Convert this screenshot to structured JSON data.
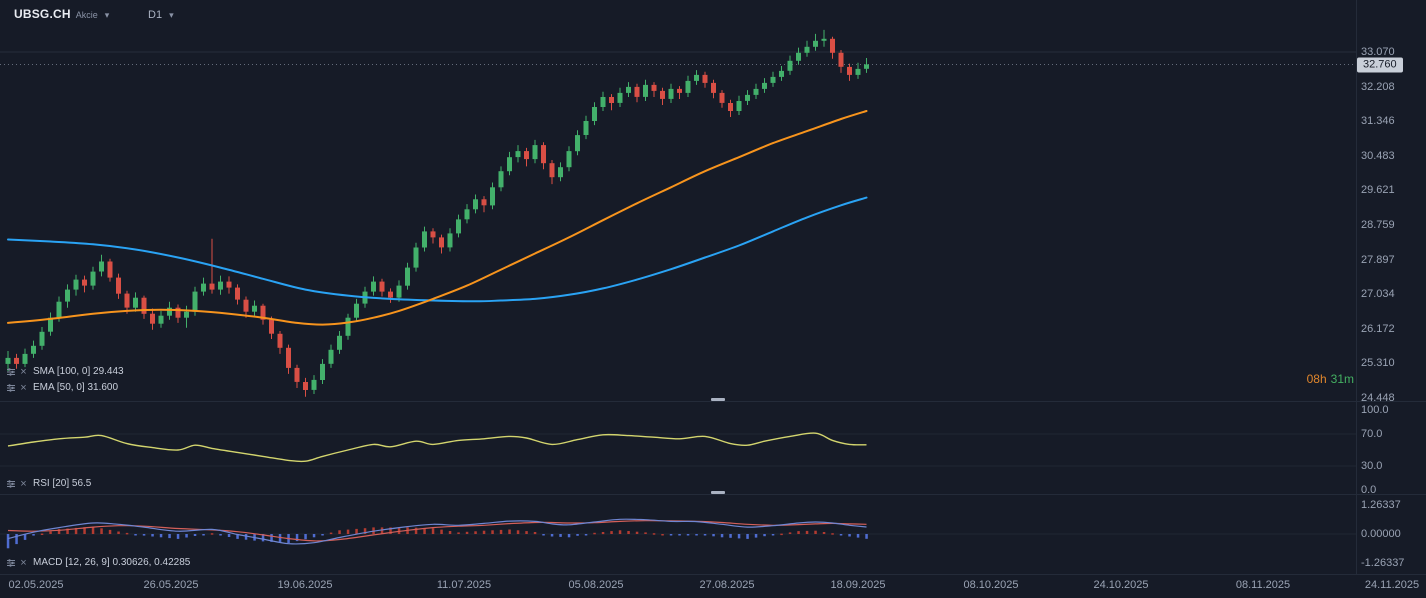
{
  "header": {
    "symbol": "UBSG.CH",
    "market_label": "Akcie",
    "timeframe": "D1"
  },
  "panels": {
    "main": {
      "sma_label": "SMA [100, 0] 29.443",
      "ema_label": "EMA [50, 0] 31.600"
    },
    "rsi": {
      "label": "RSI [20] 56.5"
    },
    "macd": {
      "label": "MACD [12, 26, 9] 0.30626, 0.42285"
    }
  },
  "countdown": {
    "hours": "08h",
    "minutes": "31m"
  },
  "price_axis": {
    "ticks": [
      "33.070",
      "32.208",
      "31.346",
      "30.483",
      "29.621",
      "28.759",
      "27.897",
      "27.034",
      "26.172",
      "25.310",
      "24.448"
    ],
    "current": "32.760"
  },
  "rsi_axis": [
    "100.0",
    "70.0",
    "30.0",
    "0.0"
  ],
  "macd_axis": [
    "1.26337",
    "0.00000",
    "-1.26337"
  ],
  "time_axis": [
    "02.05.2025",
    "26.05.2025",
    "19.06.2025",
    "11.07.2025",
    "05.08.2025",
    "27.08.2025",
    "18.09.2025",
    "08.10.2025",
    "24.10.2025",
    "08.11.2025",
    "24.11.2025"
  ],
  "colors": {
    "up": "#43b06b",
    "down": "#d94f45",
    "ema": "#f7941d",
    "sma": "#2aa3f4",
    "rsi": "#d3d56e",
    "macd_line": "#6f86d2",
    "signal_line": "#d4605a",
    "hist_pos": "#b23b31",
    "hist_neg": "#4f6cd1",
    "current_tag_bg": "#c9cfd9"
  },
  "chart_data": {
    "type": "candlestick",
    "title": "UBSG.CH Akcie D1",
    "x_start_date": "02.05.2025",
    "x_last_candle_date": "22.09.2025",
    "x_axis_end_date": "24.11.2025",
    "price_range": [
      24.448,
      33.07
    ],
    "last_close": 32.76,
    "candles": [
      [
        25.3,
        25.62,
        25.12,
        25.45
      ],
      [
        25.45,
        25.55,
        25.18,
        25.3
      ],
      [
        25.3,
        25.68,
        25.22,
        25.55
      ],
      [
        25.55,
        25.88,
        25.45,
        25.75
      ],
      [
        25.75,
        26.22,
        25.65,
        26.1
      ],
      [
        26.1,
        26.58,
        26.0,
        26.45
      ],
      [
        26.45,
        26.98,
        26.35,
        26.85
      ],
      [
        26.85,
        27.28,
        26.7,
        27.15
      ],
      [
        27.15,
        27.52,
        27.0,
        27.4
      ],
      [
        27.4,
        27.5,
        27.08,
        27.25
      ],
      [
        27.25,
        27.72,
        27.15,
        27.6
      ],
      [
        27.6,
        28.02,
        27.48,
        27.85
      ],
      [
        27.85,
        27.92,
        27.35,
        27.45
      ],
      [
        27.45,
        27.55,
        26.92,
        27.05
      ],
      [
        27.05,
        27.12,
        26.55,
        26.7
      ],
      [
        26.7,
        27.08,
        26.6,
        26.95
      ],
      [
        26.95,
        27.0,
        26.42,
        26.55
      ],
      [
        26.55,
        26.68,
        26.15,
        26.3
      ],
      [
        26.3,
        26.62,
        26.2,
        26.5
      ],
      [
        26.5,
        26.85,
        26.4,
        26.7
      ],
      [
        26.7,
        26.78,
        26.32,
        26.45
      ],
      [
        26.45,
        26.75,
        26.2,
        26.6
      ],
      [
        26.6,
        27.22,
        26.5,
        27.1
      ],
      [
        27.1,
        27.45,
        27.0,
        27.3
      ],
      [
        27.3,
        28.42,
        27.05,
        27.15
      ],
      [
        27.15,
        27.5,
        27.02,
        27.35
      ],
      [
        27.35,
        27.48,
        27.05,
        27.2
      ],
      [
        27.2,
        27.28,
        26.78,
        26.9
      ],
      [
        26.9,
        26.98,
        26.45,
        26.6
      ],
      [
        26.6,
        26.88,
        26.5,
        26.75
      ],
      [
        26.75,
        26.8,
        26.28,
        26.4
      ],
      [
        26.4,
        26.48,
        25.92,
        26.05
      ],
      [
        26.05,
        26.12,
        25.55,
        25.7
      ],
      [
        25.7,
        25.78,
        25.05,
        25.2
      ],
      [
        25.2,
        25.28,
        24.7,
        24.85
      ],
      [
        24.85,
        24.95,
        24.48,
        24.65
      ],
      [
        24.65,
        25.02,
        24.55,
        24.9
      ],
      [
        24.9,
        25.42,
        24.8,
        25.3
      ],
      [
        25.3,
        25.78,
        25.2,
        25.65
      ],
      [
        25.65,
        26.12,
        25.55,
        26.0
      ],
      [
        26.0,
        26.55,
        25.9,
        26.45
      ],
      [
        26.45,
        26.92,
        26.35,
        26.8
      ],
      [
        26.8,
        27.22,
        26.7,
        27.1
      ],
      [
        27.1,
        27.48,
        27.0,
        27.35
      ],
      [
        27.35,
        27.42,
        26.98,
        27.1
      ],
      [
        27.1,
        27.18,
        26.82,
        26.95
      ],
      [
        26.95,
        27.38,
        26.85,
        27.25
      ],
      [
        27.25,
        27.82,
        27.15,
        27.7
      ],
      [
        27.7,
        28.32,
        27.6,
        28.2
      ],
      [
        28.2,
        28.72,
        28.1,
        28.6
      ],
      [
        28.6,
        28.68,
        28.3,
        28.45
      ],
      [
        28.45,
        28.52,
        28.05,
        28.2
      ],
      [
        28.2,
        28.68,
        28.1,
        28.55
      ],
      [
        28.55,
        29.02,
        28.45,
        28.9
      ],
      [
        28.9,
        29.28,
        28.8,
        29.15
      ],
      [
        29.15,
        29.52,
        29.05,
        29.4
      ],
      [
        29.4,
        29.48,
        29.08,
        29.25
      ],
      [
        29.25,
        29.82,
        29.15,
        29.7
      ],
      [
        29.7,
        30.22,
        29.6,
        30.1
      ],
      [
        30.1,
        30.58,
        30.0,
        30.45
      ],
      [
        30.45,
        30.75,
        30.32,
        30.6
      ],
      [
        30.6,
        30.68,
        30.22,
        30.4
      ],
      [
        30.4,
        30.88,
        30.3,
        30.75
      ],
      [
        30.75,
        30.82,
        30.15,
        30.3
      ],
      [
        30.3,
        30.38,
        29.78,
        29.95
      ],
      [
        29.95,
        30.32,
        29.85,
        30.2
      ],
      [
        30.2,
        30.72,
        30.1,
        30.6
      ],
      [
        30.6,
        31.12,
        30.5,
        31.0
      ],
      [
        31.0,
        31.48,
        30.9,
        31.35
      ],
      [
        31.35,
        31.82,
        31.25,
        31.7
      ],
      [
        31.7,
        32.08,
        31.6,
        31.95
      ],
      [
        31.95,
        32.02,
        31.62,
        31.8
      ],
      [
        31.8,
        32.18,
        31.7,
        32.05
      ],
      [
        32.05,
        32.32,
        31.95,
        32.2
      ],
      [
        32.2,
        32.28,
        31.82,
        31.95
      ],
      [
        31.95,
        32.38,
        31.85,
        32.25
      ],
      [
        32.25,
        32.32,
        31.95,
        32.1
      ],
      [
        32.1,
        32.18,
        31.75,
        31.9
      ],
      [
        31.9,
        32.28,
        31.8,
        32.15
      ],
      [
        32.15,
        32.22,
        31.9,
        32.05
      ],
      [
        32.05,
        32.48,
        31.95,
        32.35
      ],
      [
        32.35,
        32.62,
        32.25,
        32.5
      ],
      [
        32.5,
        32.58,
        32.18,
        32.3
      ],
      [
        32.3,
        32.38,
        31.92,
        32.05
      ],
      [
        32.05,
        32.12,
        31.68,
        31.8
      ],
      [
        31.8,
        31.88,
        31.45,
        31.6
      ],
      [
        31.6,
        31.98,
        31.5,
        31.85
      ],
      [
        31.85,
        32.12,
        31.75,
        32.0
      ],
      [
        32.0,
        32.28,
        31.9,
        32.15
      ],
      [
        32.15,
        32.42,
        32.05,
        32.3
      ],
      [
        32.3,
        32.58,
        32.2,
        32.45
      ],
      [
        32.45,
        32.72,
        32.35,
        32.6
      ],
      [
        32.6,
        32.98,
        32.5,
        32.85
      ],
      [
        32.85,
        33.18,
        32.75,
        33.05
      ],
      [
        33.05,
        33.35,
        32.95,
        33.2
      ],
      [
        33.2,
        33.52,
        33.1,
        33.35
      ],
      [
        33.35,
        33.62,
        33.2,
        33.4
      ],
      [
        33.4,
        33.45,
        32.9,
        33.05
      ],
      [
        33.05,
        33.12,
        32.55,
        32.7
      ],
      [
        32.7,
        32.78,
        32.35,
        32.5
      ],
      [
        32.5,
        32.8,
        32.4,
        32.65
      ],
      [
        32.65,
        32.92,
        32.55,
        32.76
      ]
    ],
    "overlays": [
      {
        "name": "SMA 100",
        "current": 29.443,
        "color": "#2aa3f4",
        "points": [
          [
            0,
            28.4
          ],
          [
            5,
            28.35
          ],
          [
            10,
            28.28
          ],
          [
            15,
            28.15
          ],
          [
            20,
            27.95
          ],
          [
            25,
            27.7
          ],
          [
            30,
            27.42
          ],
          [
            35,
            27.15
          ],
          [
            40,
            27.0
          ],
          [
            45,
            26.92
          ],
          [
            50,
            26.88
          ],
          [
            55,
            26.86
          ],
          [
            58,
            26.88
          ],
          [
            62,
            26.92
          ],
          [
            66,
            27.02
          ],
          [
            70,
            27.18
          ],
          [
            74,
            27.4
          ],
          [
            78,
            27.66
          ],
          [
            82,
            27.95
          ],
          [
            86,
            28.25
          ],
          [
            90,
            28.6
          ],
          [
            94,
            28.95
          ],
          [
            98,
            29.25
          ],
          [
            101,
            29.443
          ]
        ]
      },
      {
        "name": "EMA 50",
        "current": 31.6,
        "color": "#f7941d",
        "points": [
          [
            0,
            26.32
          ],
          [
            5,
            26.42
          ],
          [
            10,
            26.55
          ],
          [
            14,
            26.62
          ],
          [
            18,
            26.65
          ],
          [
            22,
            26.62
          ],
          [
            26,
            26.55
          ],
          [
            30,
            26.45
          ],
          [
            34,
            26.32
          ],
          [
            37,
            26.28
          ],
          [
            40,
            26.33
          ],
          [
            43,
            26.45
          ],
          [
            46,
            26.62
          ],
          [
            50,
            26.92
          ],
          [
            54,
            27.25
          ],
          [
            58,
            27.65
          ],
          [
            62,
            28.05
          ],
          [
            66,
            28.45
          ],
          [
            70,
            28.88
          ],
          [
            74,
            29.3
          ],
          [
            78,
            29.7
          ],
          [
            82,
            30.1
          ],
          [
            86,
            30.45
          ],
          [
            90,
            30.8
          ],
          [
            94,
            31.1
          ],
          [
            98,
            31.4
          ],
          [
            101,
            31.6
          ]
        ]
      }
    ],
    "rsi": {
      "period": 20,
      "current": 56.5,
      "range": [
        0,
        100
      ],
      "guides": [
        70,
        30
      ],
      "points": [
        [
          0,
          55
        ],
        [
          3,
          60
        ],
        [
          6,
          64
        ],
        [
          9,
          66
        ],
        [
          11,
          68
        ],
        [
          14,
          58
        ],
        [
          17,
          53
        ],
        [
          20,
          50
        ],
        [
          22,
          56
        ],
        [
          24,
          52
        ],
        [
          27,
          47
        ],
        [
          30,
          42
        ],
        [
          33,
          37
        ],
        [
          35,
          36
        ],
        [
          37,
          42
        ],
        [
          40,
          50
        ],
        [
          43,
          57
        ],
        [
          45,
          54
        ],
        [
          48,
          61
        ],
        [
          50,
          57
        ],
        [
          53,
          62
        ],
        [
          56,
          64
        ],
        [
          59,
          67
        ],
        [
          61,
          65
        ],
        [
          64,
          57
        ],
        [
          67,
          63
        ],
        [
          70,
          69
        ],
        [
          73,
          68
        ],
        [
          76,
          66
        ],
        [
          79,
          64
        ],
        [
          82,
          67
        ],
        [
          85,
          58
        ],
        [
          87,
          56
        ],
        [
          89,
          61
        ],
        [
          92,
          67
        ],
        [
          95,
          71
        ],
        [
          97,
          62
        ],
        [
          99,
          57
        ],
        [
          101,
          56.5
        ]
      ]
    },
    "macd": {
      "fast": 12,
      "slow": 26,
      "signal_period": 9,
      "current_macd": 0.30626,
      "current_signal": 0.42285,
      "range": [
        -1.26337,
        1.26337
      ],
      "macd_points": [
        [
          0,
          -0.2
        ],
        [
          3,
          0.08
        ],
        [
          6,
          0.28
        ],
        [
          10,
          0.48
        ],
        [
          13,
          0.42
        ],
        [
          16,
          0.3
        ],
        [
          20,
          0.12
        ],
        [
          24,
          0.2
        ],
        [
          27,
          -0.02
        ],
        [
          30,
          -0.22
        ],
        [
          33,
          -0.42
        ],
        [
          36,
          -0.38
        ],
        [
          39,
          -0.15
        ],
        [
          43,
          0.12
        ],
        [
          47,
          0.32
        ],
        [
          50,
          0.42
        ],
        [
          53,
          0.38
        ],
        [
          56,
          0.46
        ],
        [
          59,
          0.56
        ],
        [
          62,
          0.55
        ],
        [
          64,
          0.44
        ],
        [
          66,
          0.4
        ],
        [
          69,
          0.52
        ],
        [
          72,
          0.64
        ],
        [
          75,
          0.62
        ],
        [
          78,
          0.55
        ],
        [
          81,
          0.54
        ],
        [
          84,
          0.42
        ],
        [
          87,
          0.3
        ],
        [
          90,
          0.36
        ],
        [
          93,
          0.48
        ],
        [
          95,
          0.52
        ],
        [
          97,
          0.48
        ],
        [
          99,
          0.38
        ],
        [
          101,
          0.30626
        ]
      ],
      "signal_points": [
        [
          0,
          0.15
        ],
        [
          3,
          0.12
        ],
        [
          6,
          0.16
        ],
        [
          10,
          0.3
        ],
        [
          13,
          0.36
        ],
        [
          16,
          0.34
        ],
        [
          20,
          0.24
        ],
        [
          24,
          0.18
        ],
        [
          27,
          0.1
        ],
        [
          30,
          -0.04
        ],
        [
          33,
          -0.2
        ],
        [
          36,
          -0.3
        ],
        [
          39,
          -0.24
        ],
        [
          43,
          -0.04
        ],
        [
          47,
          0.16
        ],
        [
          50,
          0.28
        ],
        [
          53,
          0.34
        ],
        [
          56,
          0.38
        ],
        [
          59,
          0.45
        ],
        [
          62,
          0.5
        ],
        [
          64,
          0.5
        ],
        [
          66,
          0.48
        ],
        [
          69,
          0.49
        ],
        [
          72,
          0.55
        ],
        [
          75,
          0.58
        ],
        [
          78,
          0.57
        ],
        [
          81,
          0.55
        ],
        [
          84,
          0.5
        ],
        [
          87,
          0.42
        ],
        [
          90,
          0.38
        ],
        [
          93,
          0.41
        ],
        [
          95,
          0.44
        ],
        [
          97,
          0.46
        ],
        [
          99,
          0.44
        ],
        [
          101,
          0.42285
        ]
      ]
    }
  }
}
